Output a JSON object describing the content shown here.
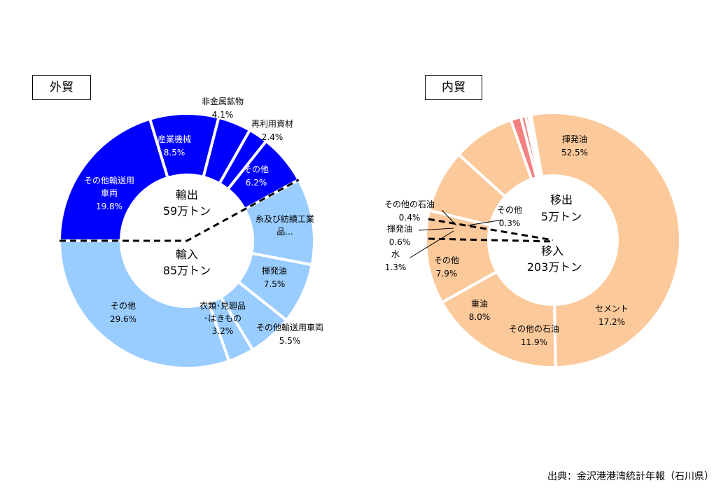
{
  "chart_data": [
    {
      "type": "pie",
      "variant": "donut",
      "title": "外貿",
      "center_labels": [
        {
          "name": "輸出",
          "amount": "59万トン"
        },
        {
          "name": "輸入",
          "amount": "85万トン"
        }
      ],
      "series": [
        {
          "name": "輸出",
          "slices": [
            {
              "label": "その他輸送用車両",
              "pct_label": "19.8%",
              "share": 19.8
            },
            {
              "label": "産業機械",
              "pct_label": "8.5%",
              "share": 8.5
            },
            {
              "label": "非金属鉱物",
              "pct_label": "4.1%",
              "share": 4.1
            },
            {
              "label": "再利用資材",
              "pct_label": "2.4%",
              "share": 2.4
            },
            {
              "label": "その他",
              "pct_label": "6.2%",
              "share": 6.2
            }
          ]
        },
        {
          "name": "輸入",
          "slices": [
            {
              "label": "糸及び紡績工業品...",
              "pct_label": "",
              "share": 10.7
            },
            {
              "label": "揮発油",
              "pct_label": "7.5%",
              "share": 7.5
            },
            {
              "label": "その他輸送用車両",
              "pct_label": "5.5%",
              "share": 5.5
            },
            {
              "label": "衣類･見廻品･はきもの",
              "pct_label": "3.2%",
              "share": 3.2
            },
            {
              "label": "その他",
              "pct_label": "29.6%",
              "share": 29.6
            }
          ]
        }
      ],
      "colors": {
        "export": "#0000ff",
        "import": "#99ccff"
      }
    },
    {
      "type": "pie",
      "variant": "donut",
      "title": "内貿",
      "center_labels": [
        {
          "name": "移出",
          "amount": "5万トン"
        },
        {
          "name": "移入",
          "amount": "203万トン"
        }
      ],
      "series": [
        {
          "name": "移入",
          "slices": [
            {
              "label": "揮発油",
              "pct_label": "52.5%",
              "share": 52.5
            },
            {
              "label": "セメント",
              "pct_label": "17.2%",
              "share": 17.2
            },
            {
              "label": "その他の石油",
              "pct_label": "11.9%",
              "share": 11.9
            },
            {
              "label": "重油",
              "pct_label": "8.0%",
              "share": 8.0
            },
            {
              "label": "その他",
              "pct_label": "7.9%",
              "share": 7.9
            }
          ]
        },
        {
          "name": "移出",
          "slices": [
            {
              "label": "水",
              "pct_label": "1.3%",
              "share": 1.3
            },
            {
              "label": "揮発油",
              "pct_label": "0.6%",
              "share": 0.6
            },
            {
              "label": "その他の石油",
              "pct_label": "0.4%",
              "share": 0.4
            },
            {
              "label": "その他",
              "pct_label": "0.3%",
              "share": 0.3
            }
          ]
        }
      ],
      "colors": {
        "inbound": "#fcc99b",
        "outbound": "#f48080"
      }
    }
  ],
  "source": "出典：金沢港港湾統計年報（石川県）"
}
